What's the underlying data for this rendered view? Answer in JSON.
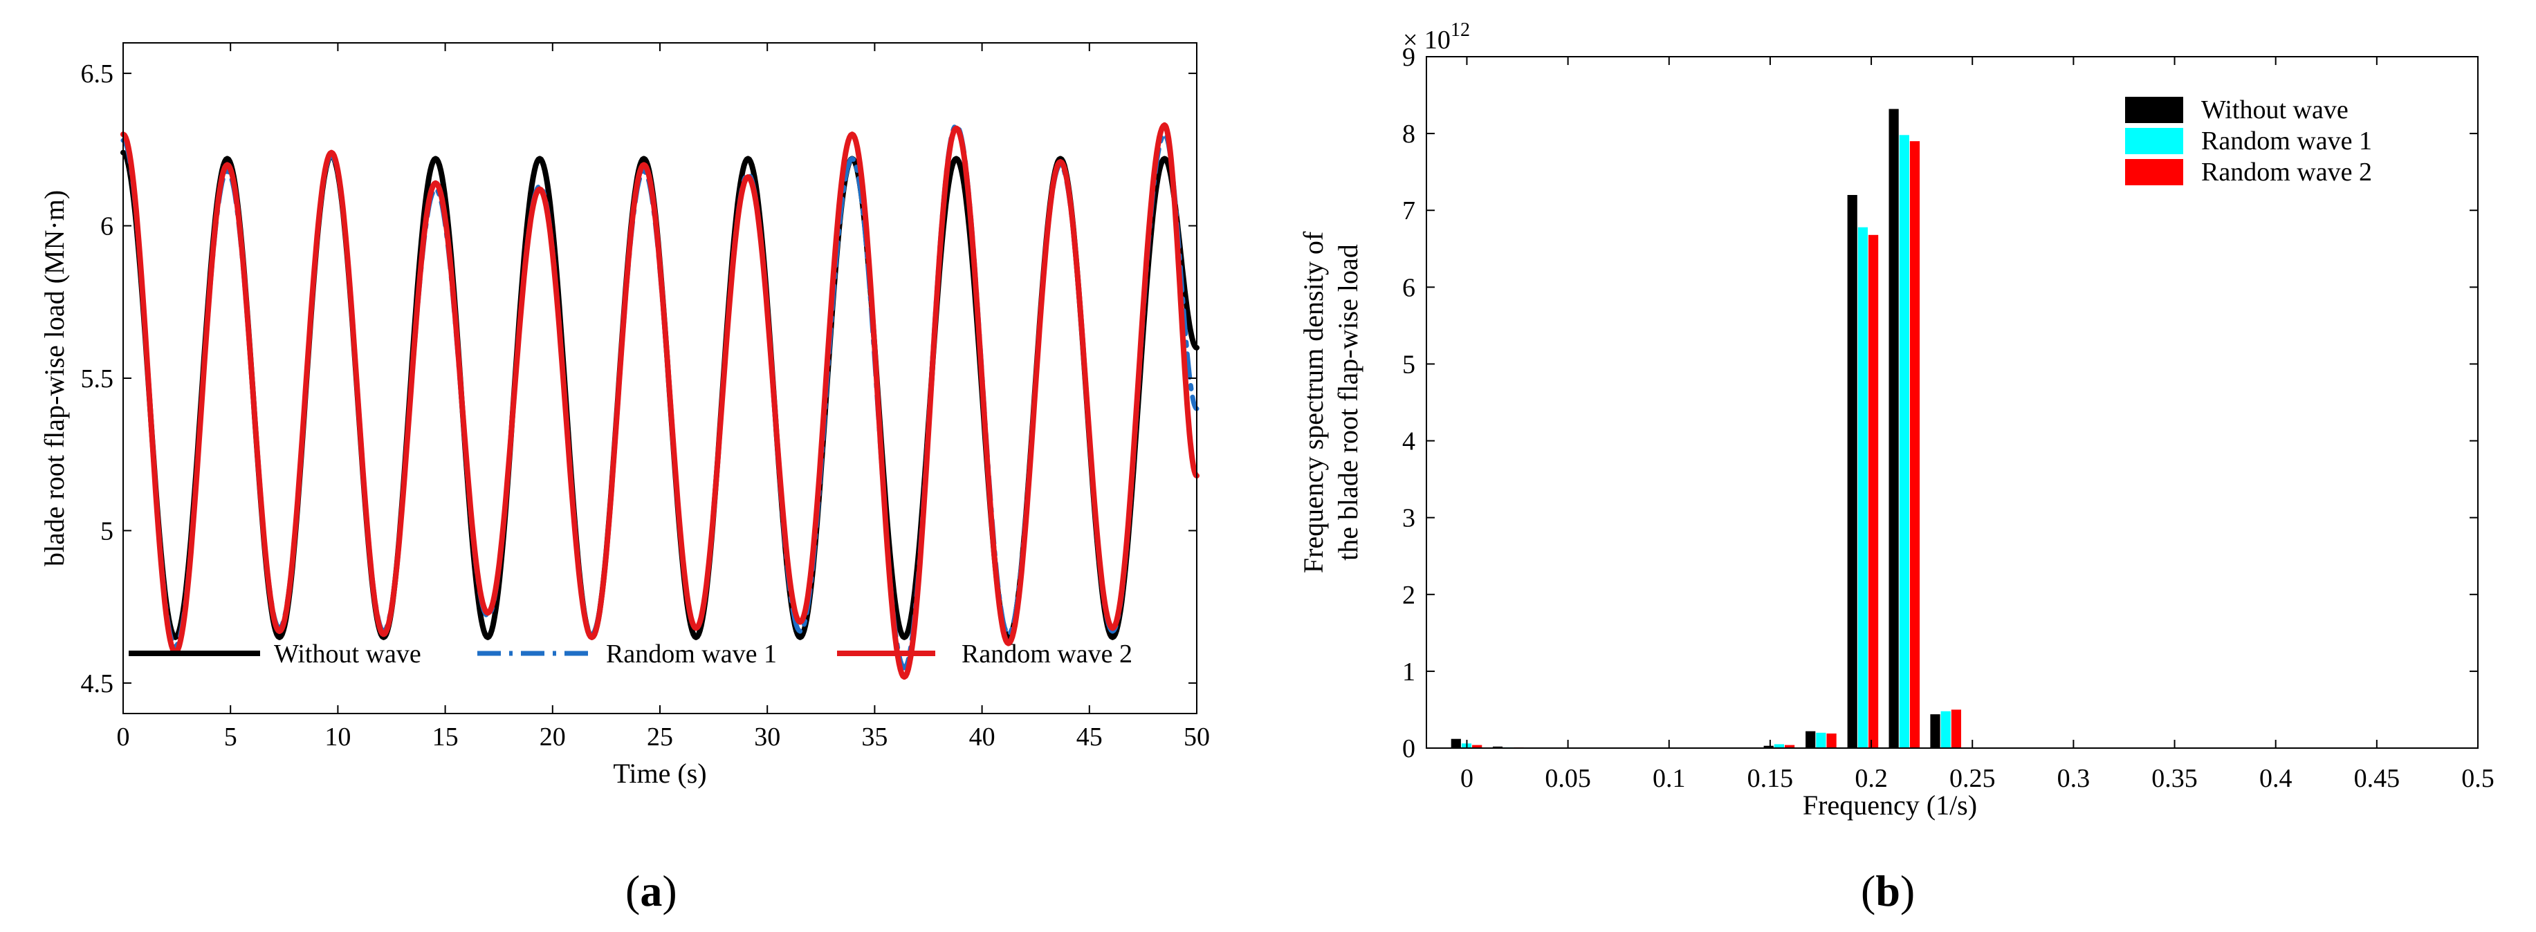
{
  "chart_data": [
    {
      "type": "line",
      "panel_label": "a",
      "xlabel": "Time (s)",
      "ylabel": "blade root flap-wise load (MN·m)",
      "xlim": [
        0,
        50
      ],
      "ylim": [
        4.4,
        6.6
      ],
      "xticks": [
        "0",
        "5",
        "10",
        "15",
        "20",
        "25",
        "30",
        "35",
        "40",
        "45",
        "50"
      ],
      "yticks": [
        "4.5",
        "5",
        "5.5",
        "6",
        "6.5"
      ],
      "grid": false,
      "legend_position": "bottom",
      "period_s": 4.85,
      "series": [
        {
          "name": "Without wave",
          "color": "#000000",
          "style": "solid",
          "peaks": [
            [
              0,
              6.24
            ],
            [
              4.85,
              6.22
            ],
            [
              9.7,
              6.23
            ],
            [
              14.55,
              6.22
            ],
            [
              19.4,
              6.22
            ],
            [
              24.25,
              6.22
            ],
            [
              29.1,
              6.22
            ],
            [
              33.95,
              6.22
            ],
            [
              38.8,
              6.22
            ],
            [
              43.65,
              6.22
            ],
            [
              48.5,
              6.22
            ]
          ],
          "troughs": [
            [
              2.43,
              4.65
            ],
            [
              7.28,
              4.65
            ],
            [
              12.13,
              4.65
            ],
            [
              16.98,
              4.65
            ],
            [
              21.83,
              4.65
            ],
            [
              26.68,
              4.65
            ],
            [
              31.53,
              4.65
            ],
            [
              36.38,
              4.65
            ],
            [
              41.23,
              4.65
            ],
            [
              46.08,
              4.65
            ]
          ],
          "end": [
            50,
            5.6
          ]
        },
        {
          "name": "Random wave 1",
          "color": "#1f6fc6",
          "style": "dashdot",
          "peaks": [
            [
              0,
              6.28
            ],
            [
              4.85,
              6.18
            ],
            [
              9.7,
              6.23
            ],
            [
              14.55,
              6.12
            ],
            [
              19.4,
              6.13
            ],
            [
              24.25,
              6.18
            ],
            [
              29.1,
              6.17
            ],
            [
              33.95,
              6.22
            ],
            [
              38.8,
              6.33
            ],
            [
              43.65,
              6.2
            ],
            [
              48.5,
              6.3
            ]
          ],
          "troughs": [
            [
              2.43,
              4.62
            ],
            [
              7.28,
              4.68
            ],
            [
              12.13,
              4.67
            ],
            [
              16.98,
              4.72
            ],
            [
              21.83,
              4.66
            ],
            [
              26.68,
              4.68
            ],
            [
              31.53,
              4.67
            ],
            [
              36.38,
              4.55
            ],
            [
              41.23,
              4.66
            ],
            [
              46.08,
              4.67
            ]
          ],
          "end": [
            50,
            5.4
          ]
        },
        {
          "name": "Random wave 2",
          "color": "#e3181b",
          "style": "solid",
          "peaks": [
            [
              0,
              6.3
            ],
            [
              4.85,
              6.2
            ],
            [
              9.7,
              6.24
            ],
            [
              14.55,
              6.14
            ],
            [
              19.4,
              6.12
            ],
            [
              24.25,
              6.2
            ],
            [
              29.1,
              6.16
            ],
            [
              33.95,
              6.3
            ],
            [
              38.8,
              6.32
            ],
            [
              43.65,
              6.21
            ],
            [
              48.5,
              6.33
            ]
          ],
          "troughs": [
            [
              2.43,
              4.6
            ],
            [
              7.28,
              4.67
            ],
            [
              12.13,
              4.66
            ],
            [
              16.98,
              4.73
            ],
            [
              21.83,
              4.65
            ],
            [
              26.68,
              4.68
            ],
            [
              31.53,
              4.7
            ],
            [
              36.38,
              4.52
            ],
            [
              41.23,
              4.63
            ],
            [
              46.08,
              4.68
            ]
          ],
          "end": [
            50,
            5.18
          ]
        }
      ]
    },
    {
      "type": "bar",
      "panel_label": "b",
      "xlabel": "Frequency (1/s)",
      "ylabel_line1": "Frequency spectrum density of",
      "ylabel_line2": "the blade root flap-wise load",
      "exponent_label": "× 10",
      "exponent_power": "12",
      "xlim": [
        -0.02,
        0.5
      ],
      "ylim": [
        0,
        9
      ],
      "xticks": [
        "0",
        "0.05",
        "0.1",
        "0.15",
        "0.2",
        "0.25",
        "0.3",
        "0.35",
        "0.4",
        "0.45",
        "0.5"
      ],
      "yticks": [
        "0",
        "1",
        "2",
        "3",
        "4",
        "5",
        "6",
        "7",
        "8",
        "9"
      ],
      "grid": false,
      "legend_position": "top-right",
      "group_centers": [
        0,
        0.0206,
        0.1546,
        0.1753,
        0.196,
        0.2165,
        0.237
      ],
      "series": [
        {
          "name": "Without wave",
          "color": "#000000",
          "values": [
            0.12,
            0.02,
            0.03,
            0.22,
            7.2,
            8.32,
            0.44
          ]
        },
        {
          "name": "Random wave 1",
          "color": "#00ffff",
          "values": [
            0.06,
            0.01,
            0.05,
            0.2,
            6.78,
            7.98,
            0.48
          ]
        },
        {
          "name": "Random wave 2",
          "color": "#ff0000",
          "values": [
            0.04,
            0.01,
            0.04,
            0.19,
            6.68,
            7.9,
            0.5
          ]
        }
      ]
    }
  ]
}
